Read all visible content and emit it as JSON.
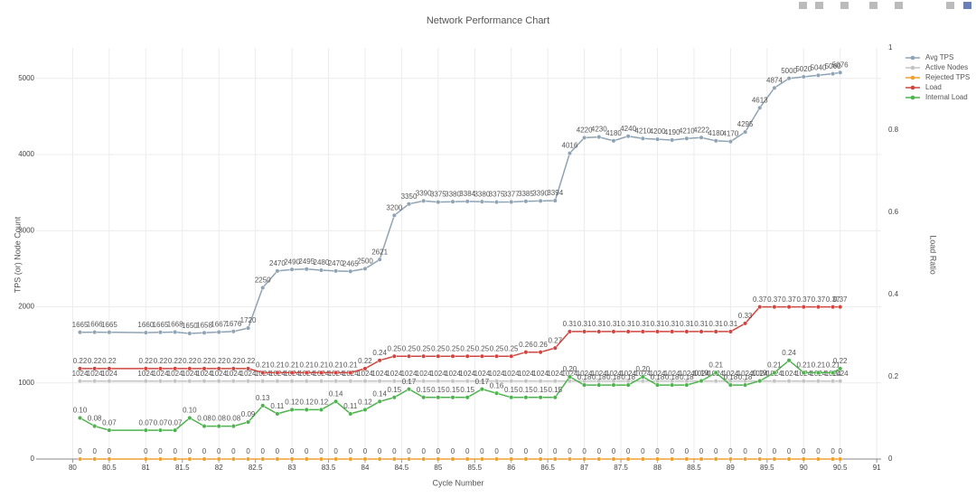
{
  "chart_data": {
    "type": "line",
    "title": "Network Performance Chart",
    "x_label": "Cycle Number",
    "y_label": "TPS (or) Node Count",
    "y2_label": "Load Ratio",
    "x": [
      80.1,
      80.3,
      80.5,
      81,
      81.2,
      81.4,
      81.6,
      81.8,
      82,
      82.2,
      82.4,
      82.6,
      82.8,
      83,
      83.2,
      83.4,
      83.6,
      83.8,
      84,
      84.2,
      84.4,
      84.6,
      84.8,
      85,
      85.2,
      85.4,
      85.6,
      85.8,
      86,
      86.2,
      86.4,
      86.6,
      86.8,
      87,
      87.2,
      87.4,
      87.6,
      87.8,
      88,
      88.2,
      88.4,
      88.6,
      88.8,
      89,
      89.2,
      89.4,
      89.6,
      89.8,
      90,
      90.2,
      90.4,
      90.5
    ],
    "series": [
      {
        "name": "Avg TPS",
        "color": "#8ea3b3",
        "values": [
          1665,
          1666,
          1665,
          1660,
          1665,
          1668,
          1650,
          1658,
          1667,
          1676,
          1720,
          2250,
          2470,
          2490,
          2495,
          2480,
          2470,
          2465,
          2500,
          2621,
          3200,
          3350,
          3390,
          3375,
          3380,
          3384,
          3380,
          3375,
          3377,
          3385,
          3390,
          3394,
          4016,
          4220,
          4230,
          4180,
          4240,
          4210,
          4200,
          4190,
          4210,
          4222,
          4180,
          4170,
          4295,
          4613,
          4874,
          5000,
          5020,
          5040,
          5060,
          5076
        ]
      },
      {
        "name": "Active Nodes",
        "color": "#c4c4c4",
        "values": [
          1024,
          1024,
          1024,
          1024,
          1024,
          1024,
          1024,
          1024,
          1024,
          1024,
          1024,
          1024,
          1024,
          1024,
          1024,
          1024,
          1024,
          1024,
          1024,
          1024,
          1024,
          1024,
          1024,
          1024,
          1024,
          1024,
          1024,
          1024,
          1024,
          1024,
          1024,
          1024,
          1024,
          1024,
          1024,
          1024,
          1024,
          1024,
          1024,
          1024,
          1024,
          1024,
          1024,
          1024,
          1024,
          1024,
          1024,
          1024,
          1024,
          1024,
          1024,
          1024
        ]
      },
      {
        "name": "Rejected TPS",
        "color": "#f0a030",
        "values": [
          0,
          0,
          0,
          0,
          0,
          0,
          0,
          0,
          0,
          0,
          0,
          0,
          0,
          0,
          0,
          0,
          0,
          0,
          0,
          0,
          0,
          0,
          0,
          0,
          0,
          0,
          0,
          0,
          0,
          0,
          0,
          0,
          0,
          0,
          0,
          0,
          0,
          0,
          0,
          0,
          0,
          0,
          0,
          0,
          0,
          0,
          0,
          0,
          0,
          0,
          0,
          0
        ]
      },
      {
        "name": "Load",
        "color": "#d0453f",
        "axis": "y2",
        "values": [
          0.22,
          0.22,
          0.22,
          0.22,
          0.22,
          0.22,
          0.22,
          0.22,
          0.22,
          0.22,
          0.22,
          0.21,
          0.21,
          0.21,
          0.21,
          0.21,
          0.21,
          0.21,
          0.22,
          0.24,
          0.25,
          0.25,
          0.25,
          0.25,
          0.25,
          0.25,
          0.25,
          0.25,
          0.25,
          0.26,
          0.26,
          0.27,
          0.31,
          0.31,
          0.31,
          0.31,
          0.31,
          0.31,
          0.31,
          0.31,
          0.31,
          0.31,
          0.31,
          0.31,
          0.33,
          0.37,
          0.37,
          0.37,
          0.37,
          0.37,
          0.37,
          0.37
        ]
      },
      {
        "name": "Internal Load",
        "color": "#4db34d",
        "axis": "y2",
        "values": [
          0.1,
          0.08,
          0.07,
          0.07,
          0.07,
          0.07,
          0.1,
          0.08,
          0.08,
          0.08,
          0.09,
          0.13,
          0.11,
          0.12,
          0.12,
          0.12,
          0.14,
          0.11,
          0.12,
          0.14,
          0.15,
          0.17,
          0.15,
          0.15,
          0.15,
          0.15,
          0.17,
          0.16,
          0.15,
          0.15,
          0.15,
          0.15,
          0.2,
          0.18,
          0.18,
          0.18,
          0.18,
          0.2,
          0.18,
          0.18,
          0.18,
          0.19,
          0.21,
          0.18,
          0.18,
          0.19,
          0.21,
          0.24,
          0.21,
          0.21,
          0.21,
          0.22
        ],
        "value_labels": [
          "0.10",
          "0.08",
          "0.07",
          "0.07",
          "0.07",
          "0.07",
          "0.10",
          "0.08",
          "0.08",
          "0.08",
          "0.09",
          "0.13",
          "0.11",
          "0.12",
          "0.12",
          "0.12",
          "0.14",
          "0.11",
          "0.12",
          "0.14",
          "0.15",
          "0.17",
          "0.15",
          "0.15",
          "0.15",
          "0.15",
          "0.17",
          "0.16",
          "0.15",
          "0.15",
          "0.15",
          "0.15",
          "0.20",
          "0.18",
          "0.18",
          "0.18",
          "0.18",
          "0.20",
          "0.18",
          "0.18",
          "0.18",
          "0.19",
          "0.21",
          "0.18",
          "0.18",
          "0.19",
          "0.21",
          "0.24",
          "0.21",
          "0.21",
          "0.21",
          "0.22"
        ]
      }
    ],
    "xlim": [
      79.5,
      91.06
    ],
    "xticks": [
      80,
      80.5,
      81,
      81.5,
      82,
      82.5,
      83,
      83.5,
      84,
      84.5,
      85,
      85.5,
      86,
      86.5,
      87,
      87.5,
      88,
      88.5,
      89,
      89.5,
      90,
      90.5,
      91
    ],
    "ylim": [
      0,
      5400
    ],
    "yticks": [
      0,
      1000,
      2000,
      3000,
      4000,
      5000
    ],
    "y2lim": [
      0,
      1
    ],
    "y2ticks": [
      0,
      0.2,
      0.4,
      0.6,
      0.8,
      1
    ],
    "grid": true,
    "legend": "top-right"
  }
}
